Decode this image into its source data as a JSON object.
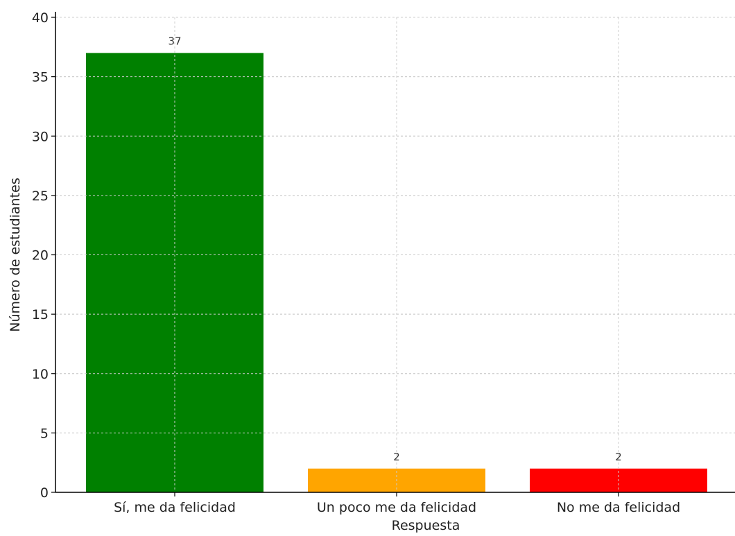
{
  "chart_data": {
    "type": "bar",
    "title": "",
    "xlabel": "Respuesta",
    "ylabel": "Número de estudiantes",
    "categories": [
      "Sí, me da felicidad",
      "Un poco me da felicidad",
      "No me da felicidad"
    ],
    "values": [
      37,
      2,
      2
    ],
    "colors": [
      "#008000",
      "#FFA500",
      "#FF0000"
    ],
    "ylim": [
      0,
      40
    ],
    "yticks": [
      0,
      5,
      10,
      15,
      20,
      25,
      30,
      35,
      40
    ],
    "grid": true,
    "data_labels": [
      "37",
      "2",
      "2"
    ]
  }
}
